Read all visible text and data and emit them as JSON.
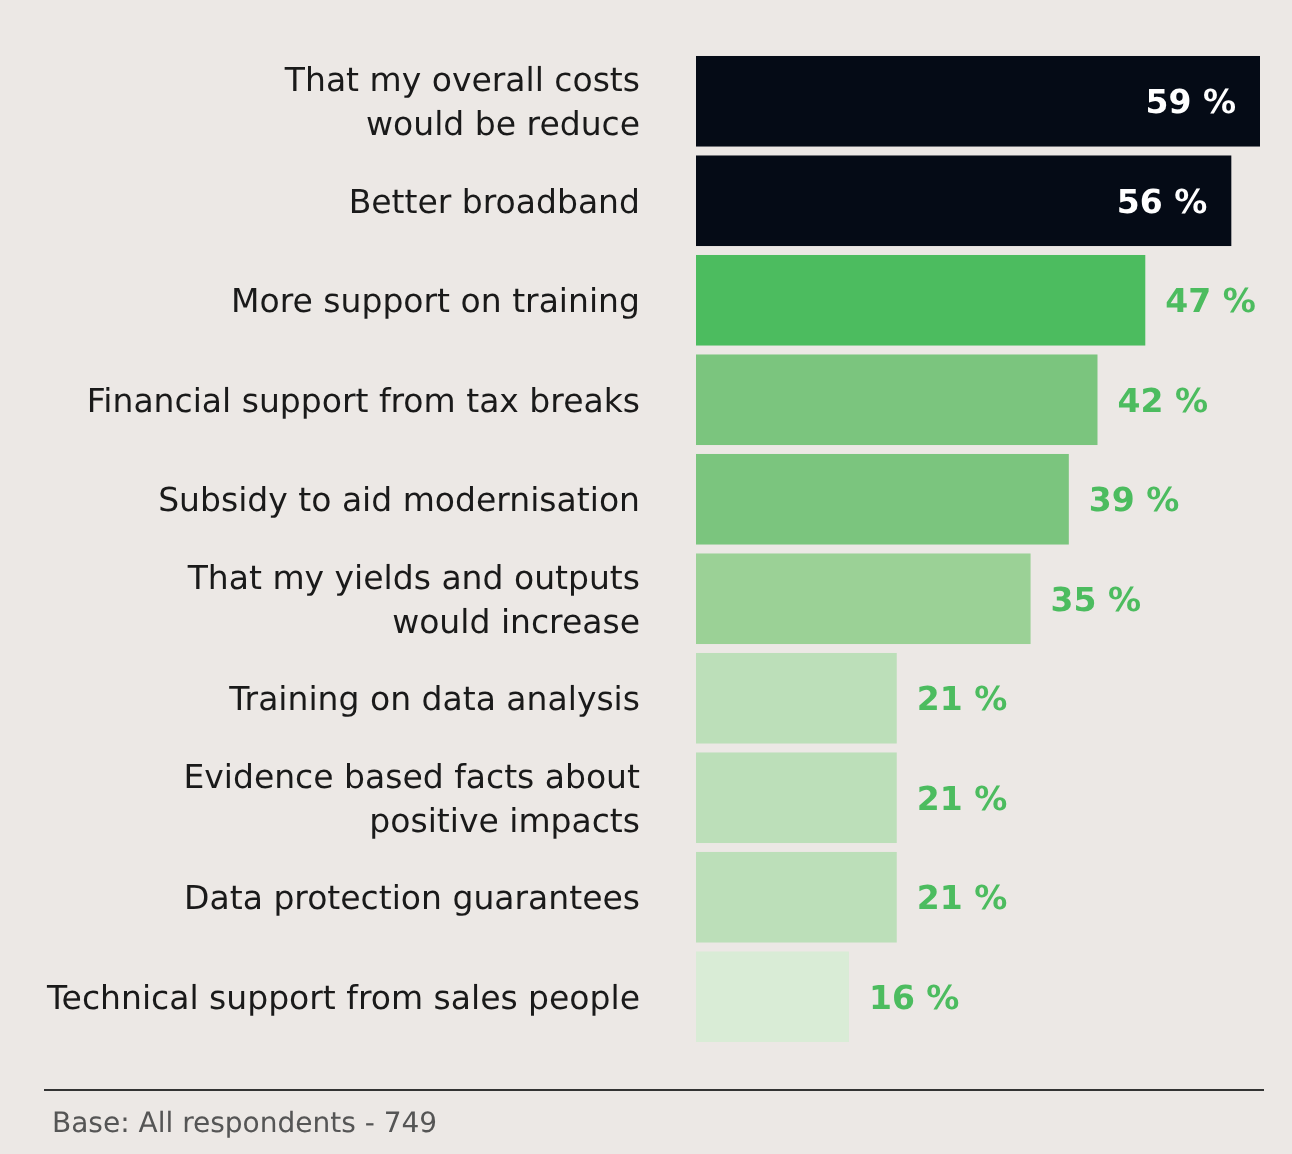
{
  "chart_data": {
    "type": "bar",
    "orientation": "horizontal",
    "categories": [
      "That my overall costs\nwould be reduce",
      "Better broadband",
      "More support on training",
      "Financial support from tax breaks",
      "Subsidy to aid modernisation",
      "That my yields and outputs\nwould increase",
      "Training on data analysis",
      "Evidence based facts about\npositive impacts",
      "Data protection guarantees",
      "Technical support from sales people"
    ],
    "values": [
      59,
      56,
      47,
      42,
      39,
      35,
      21,
      21,
      21,
      16
    ],
    "colors": [
      "#050b16",
      "#050b16",
      "#4cbc5f",
      "#7bc57e",
      "#7bc57e",
      "#9bd196",
      "#bcdfb9",
      "#bcdfb9",
      "#bcdfb9",
      "#d9ecd6"
    ],
    "value_labels": [
      "59 %",
      "56 %",
      "47 %",
      "42 %",
      "39 %",
      "35 %",
      "21 %",
      "21 %",
      "21 %",
      "16 %"
    ],
    "annotations": [
      "Base: All respondents - 749"
    ]
  }
}
